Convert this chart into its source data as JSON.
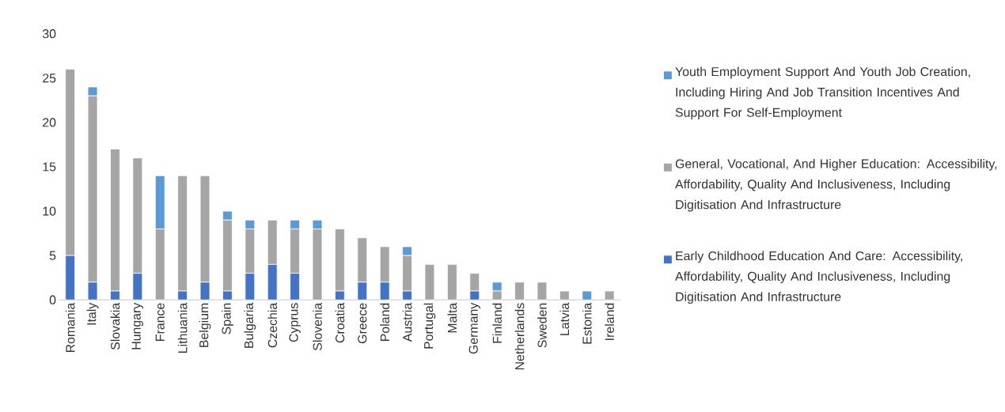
{
  "chart_data": {
    "type": "bar",
    "stacked": true,
    "legend": "right",
    "categories": [
      "Romania",
      "Italy",
      "Slovakia",
      "Hungary",
      "France",
      "Lithuania",
      "Belgium",
      "Spain",
      "Bulgaria",
      "Czechia",
      "Cyprus",
      "Slovenia",
      "Croatia",
      "Greece",
      "Poland",
      "Austria",
      "Portugal",
      "Malta",
      "Germany",
      "Finland",
      "Netherlands",
      "Sweden",
      "Latvia",
      "Estonia",
      "Ireland"
    ],
    "series": [
      {
        "name": "Early Childhood Education And Care: Accessibility, Affordability, Quality And Inclusiveness, Including Digitisation And Infrastructure",
        "color": "#4472c4",
        "values": [
          5,
          2,
          1,
          3,
          0,
          1,
          2,
          1,
          3,
          4,
          3,
          0,
          1,
          2,
          2,
          1,
          0,
          0,
          1,
          0,
          0,
          0,
          0,
          0,
          0
        ]
      },
      {
        "name": "General, Vocational, And Higher Education: Accessibility, Affordability, Quality And Inclusiveness, Including Digitisation And Infrastructure",
        "color": "#a5a5a5",
        "values": [
          21,
          21,
          16,
          13,
          8,
          13,
          12,
          8,
          5,
          5,
          5,
          8,
          7,
          5,
          4,
          4,
          4,
          4,
          2,
          1,
          2,
          2,
          1,
          0,
          1
        ]
      },
      {
        "name": "Youth Employment Support And Youth Job Creation, Including Hiring And Job Transition Incentives And Support For Self-Employment",
        "color": "#5b9bd5",
        "values": [
          0,
          1,
          0,
          0,
          6,
          0,
          0,
          1,
          1,
          0,
          1,
          1,
          0,
          0,
          0,
          1,
          0,
          0,
          0,
          1,
          0,
          0,
          0,
          1,
          0
        ]
      }
    ],
    "ylim": [
      0,
      30
    ],
    "yticks": [
      0,
      5,
      10,
      15,
      20,
      25,
      30
    ]
  }
}
